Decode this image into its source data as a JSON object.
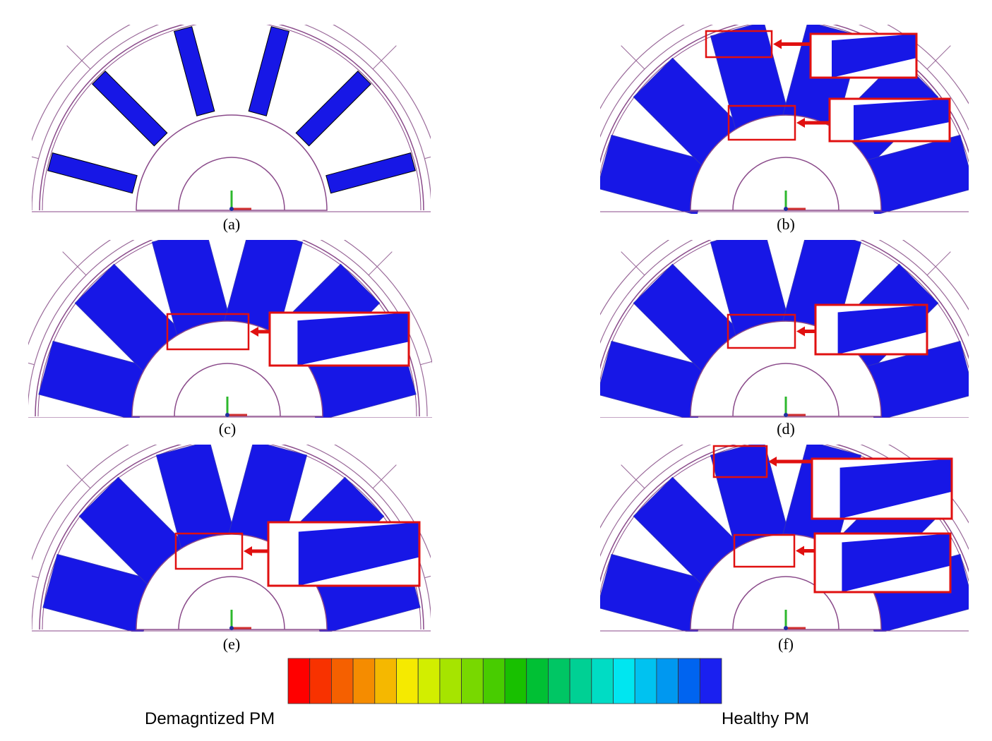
{
  "panels": [
    {
      "label": "(a)"
    },
    {
      "label": "(b)"
    },
    {
      "label": "(c)"
    },
    {
      "label": "(d)"
    },
    {
      "label": "(e)"
    },
    {
      "label": "(f)"
    }
  ],
  "colorbar": {
    "colors": [
      "#ff0000",
      "#f83200",
      "#f56000",
      "#f58c00",
      "#f5b800",
      "#f5ea00",
      "#d2ee00",
      "#a6e400",
      "#78d800",
      "#48cc00",
      "#18c000",
      "#00c034",
      "#00c664",
      "#00d094",
      "#00dcc4",
      "#00e6f0",
      "#00c2f0",
      "#0098f0",
      "#0064f0",
      "#1a20f0"
    ],
    "left_label": "Demagntized PM",
    "right_label": "Healthy PM"
  }
}
